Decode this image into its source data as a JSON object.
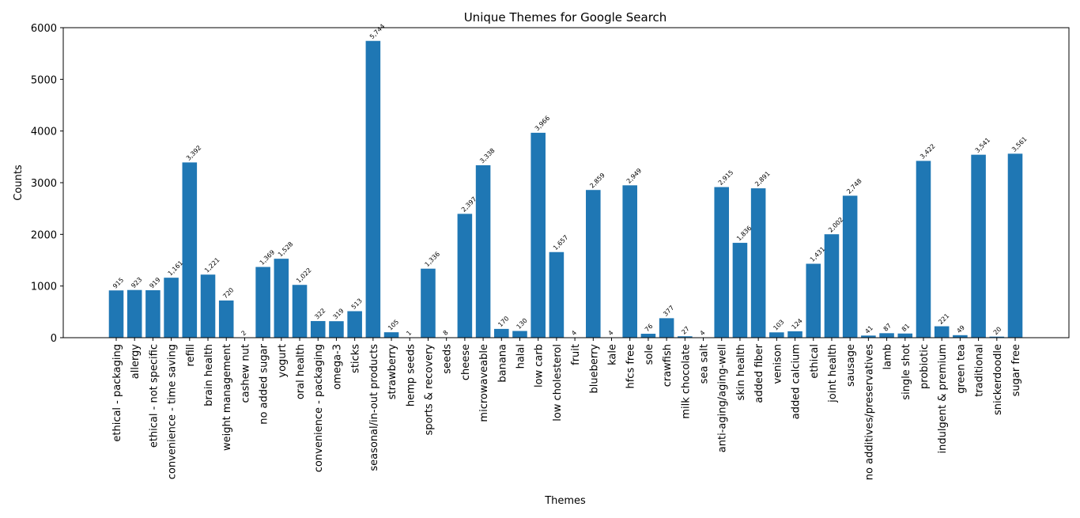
{
  "chart_data": {
    "type": "bar",
    "title": "Unique Themes for Google Search",
    "xlabel": "Themes",
    "ylabel": "Counts",
    "ylim": [
      0,
      6000
    ],
    "yticks": [
      0,
      1000,
      2000,
      3000,
      4000,
      5000,
      6000
    ],
    "grid": false,
    "bar_color": "#1f77b4",
    "categories": [
      "ethical - packaging",
      "allergy",
      "ethical - not specific",
      "convenience - time saving",
      "refill",
      "brain health",
      "weight management",
      "cashew nut",
      "no added sugar",
      "yogurt",
      "oral health",
      "convenience - packaging",
      "omega-3",
      "sticks",
      "seasonal/in-out products",
      "strawberry",
      "hemp seeds",
      "sports & recovery",
      "seeds",
      "cheese",
      "microwaveable",
      "banana",
      "halal",
      "low carb",
      "low cholesterol",
      "fruit",
      "blueberry",
      "kale",
      "hfcs free",
      "sole",
      "crawfish",
      "milk chocolate",
      "sea salt",
      "anti-aging/aging-well",
      "skin health",
      "added fiber",
      "venison",
      "added calcium",
      "ethical",
      "joint health",
      "sausage",
      "no additives/preservatives",
      "lamb",
      "single shot",
      "probiotic",
      "indulgent & premium",
      "green tea",
      "traditional",
      "snickerdoodle",
      "sugar free"
    ],
    "values": [
      915,
      923,
      919,
      1161,
      3392,
      1221,
      720,
      2,
      1369,
      1528,
      1022,
      322,
      319,
      513,
      5744,
      105,
      1,
      1336,
      8,
      2397,
      3338,
      170,
      130,
      3966,
      1657,
      4,
      2859,
      4,
      2949,
      76,
      377,
      27,
      4,
      2915,
      1836,
      2891,
      103,
      124,
      1431,
      2002,
      2748,
      41,
      87,
      81,
      3422,
      221,
      49,
      3541,
      20,
      3561
    ],
    "data_labels": [
      "915",
      "923",
      "919",
      "1,161",
      "3,392",
      "1,221",
      "720",
      "2",
      "1,369",
      "1,528",
      "1,022",
      "322",
      "319",
      "513",
      "5,744",
      "105",
      "1",
      "1,336",
      "8",
      "2,397",
      "3,338",
      "170",
      "130",
      "3,966",
      "1,657",
      "4",
      "2,859",
      "4",
      "2,949",
      "76",
      "377",
      "27",
      "4",
      "2,915",
      "1,836",
      "2,891",
      "103",
      "124",
      "1,431",
      "2,002",
      "2,748",
      "41",
      "87",
      "81",
      "3,422",
      "221",
      "49",
      "3,541",
      "20",
      "3,561"
    ]
  }
}
